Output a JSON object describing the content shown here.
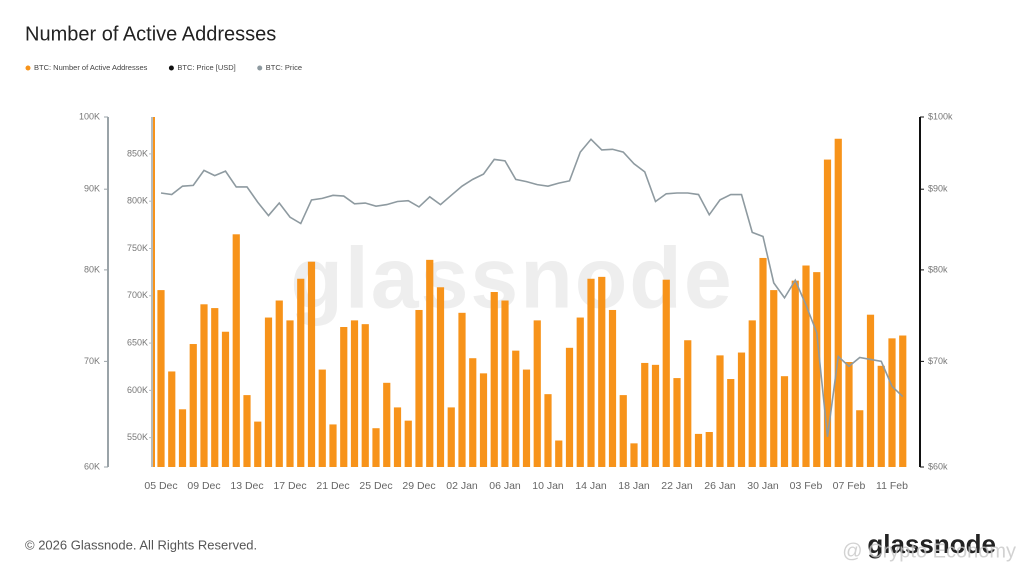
{
  "chart_data": {
    "type": "bar",
    "title": "Number of Active Addresses",
    "legend": [
      {
        "name": "BTC: Number of Active Addresses",
        "color": "#f7931a"
      },
      {
        "name": "BTC: Price [USD]",
        "color": "#111111"
      },
      {
        "name": "BTC: Price",
        "color": "#8e9aa0"
      }
    ],
    "categories": [
      "05 Dec",
      null,
      null,
      null,
      "09 Dec",
      null,
      null,
      null,
      "13 Dec",
      null,
      null,
      null,
      "17 Dec",
      null,
      null,
      null,
      "21 Dec",
      null,
      null,
      null,
      "25 Dec",
      null,
      null,
      null,
      "29 Dec",
      null,
      null,
      null,
      "02 Jan",
      null,
      null,
      null,
      "06 Jan",
      null,
      null,
      null,
      "10 Jan",
      null,
      null,
      null,
      "14 Jan",
      null,
      null,
      null,
      "18 Jan",
      null,
      null,
      null,
      "22 Jan",
      null,
      null,
      null,
      "26 Jan",
      null,
      null,
      null,
      "30 Jan",
      null,
      null,
      null,
      "03 Feb",
      null,
      null,
      null,
      "07 Feb",
      null,
      null,
      null,
      "11 Feb",
      null
    ],
    "series": [
      {
        "name": "BTC: Number of Active Addresses",
        "color": "#f7931a",
        "type": "bar",
        "values": [
          706000,
          620000,
          580000,
          649000,
          691000,
          687000,
          662000,
          765000,
          595000,
          567000,
          677000,
          695000,
          674000,
          718000,
          736000,
          622000,
          564000,
          667000,
          674000,
          670000,
          560000,
          608000,
          582000,
          568000,
          685000,
          738000,
          709000,
          582000,
          682000,
          634000,
          618000,
          704000,
          695000,
          642000,
          622000,
          674000,
          596000,
          547000,
          645000,
          677000,
          718000,
          720000,
          685000,
          595000,
          544000,
          629000,
          627000,
          717000,
          613000,
          653000,
          554000,
          556000,
          637000,
          612000,
          640000,
          674000,
          740000,
          706000,
          615000,
          716000,
          732000,
          725000,
          844000,
          866000,
          630000,
          579000,
          680000,
          626000,
          655000,
          658000
        ]
      },
      {
        "name": "BTC: Price",
        "color": "#8e9aa0",
        "type": "line",
        "axis": "y2",
        "values": [
          89500,
          89300,
          90400,
          90500,
          92500,
          91800,
          92400,
          90300,
          90300,
          88300,
          86600,
          88200,
          86400,
          85600,
          88600,
          88800,
          89200,
          89100,
          88100,
          88200,
          87800,
          88000,
          88400,
          88500,
          87700,
          89000,
          88000,
          89200,
          90400,
          91300,
          92000,
          94000,
          93800,
          91300,
          91000,
          90600,
          90400,
          90800,
          91100,
          95000,
          96800,
          95300,
          95400,
          95000,
          93400,
          92300,
          88400,
          89400,
          89500,
          89500,
          89300,
          86700,
          88600,
          89300,
          89300,
          84500,
          84000,
          78500,
          76800,
          78800,
          76000,
          73000,
          62700,
          70500,
          69500,
          70400,
          70200,
          70000,
          67500,
          66500
        ]
      }
    ],
    "ylim": [
      519000,
      889000
    ],
    "yticks": [
      {
        "value": 550000,
        "label": "550K"
      },
      {
        "value": 600000,
        "label": "600K"
      },
      {
        "value": 650000,
        "label": "650K"
      },
      {
        "value": 700000,
        "label": "700K"
      },
      {
        "value": 750000,
        "label": "750K"
      },
      {
        "value": 800000,
        "label": "800K"
      },
      {
        "value": 850000,
        "label": "850K"
      }
    ],
    "y2lim": [
      60000,
      100000
    ],
    "y2log": true,
    "y2ticks": [
      {
        "value": 60000,
        "label": "$60k"
      },
      {
        "value": 70000,
        "label": "$70k"
      },
      {
        "value": 80000,
        "label": "$80k"
      },
      {
        "value": 90000,
        "label": "$90k"
      },
      {
        "value": 100000,
        "label": "$100k"
      }
    ],
    "y3ticks": [
      {
        "value": 60000,
        "label": "60K"
      },
      {
        "value": 70000,
        "label": "70K"
      },
      {
        "value": 80000,
        "label": "80K"
      },
      {
        "value": 90000,
        "label": "90K"
      },
      {
        "value": 100000,
        "label": "100K"
      }
    ],
    "watermark": "glassnode",
    "footer": "© 2026 Glassnode. All Rights Reserved.",
    "logo": "glassnode",
    "credit": "@ Crypto Economy"
  }
}
